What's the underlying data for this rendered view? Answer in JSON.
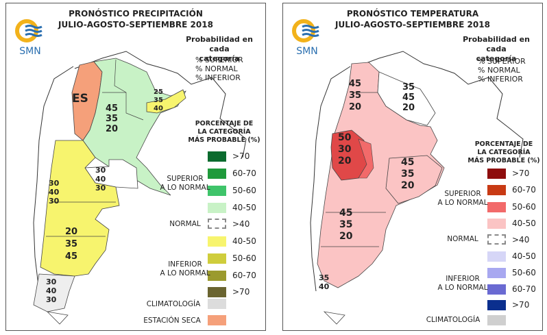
{
  "precipitation": {
    "title_line1": "PRONÓSTICO PRECIPITACIÓN",
    "title_line2": "JULIO-AGOSTO-SEPTIEMBRE 2018",
    "logo_text": "SMN",
    "prob_heading_line1": "Probabilidad en cada",
    "prob_heading_line2": "categoría",
    "prob_lines": [
      "% SUPERIOR",
      "% NORMAL",
      "% INFERIOR"
    ],
    "pct_title_line1": "PORCENTAJE DE",
    "pct_title_line2": "LA CATEGORÍA",
    "pct_title_line3": "MÁS PROBABLE (%)",
    "groups": {
      "superior": "SUPERIOR\nA LO NORMAL",
      "normal": "NORMAL",
      "inferior": "INFERIOR\nA LO NORMAL",
      "climatologia": "CLIMATOLOGÍA",
      "estacion_seca": "ESTACIÓN SECA"
    },
    "legend": [
      {
        "label": ">70",
        "color": "#0b6b2e"
      },
      {
        "label": "60-70",
        "color": "#1f9a3b"
      },
      {
        "label": "50-60",
        "color": "#3fc46a"
      },
      {
        "label": "40-50",
        "color": "#c8f2c6"
      },
      {
        "label": ">40",
        "color": "#ffffff"
      },
      {
        "label": "40-50",
        "color": "#f7f46e"
      },
      {
        "label": "50-60",
        "color": "#cfcd3c"
      },
      {
        "label": "60-70",
        "color": "#9b9a2e"
      },
      {
        "label": ">70",
        "color": "#6a6430"
      },
      {
        "label": "",
        "color": "#dcdcdc"
      },
      {
        "label": "",
        "color": "#f5a07a"
      }
    ],
    "map_labels": {
      "es": "ES",
      "center": [
        "45",
        "35",
        "20"
      ],
      "ne": [
        "25",
        "35",
        "40"
      ],
      "mid": [
        "30",
        "40",
        "30"
      ],
      "west": [
        "30",
        "40",
        "30"
      ],
      "patagonia": [
        "20",
        "35",
        "45"
      ],
      "south": [
        "30",
        "40",
        "30"
      ]
    }
  },
  "temperature": {
    "title_line1": "PRONÓSTICO TEMPERATURA",
    "title_line2": "JULIO-AGOSTO-SEPTIEMBRE 2018",
    "logo_text": "SMN",
    "prob_heading_line1": "Probabilidad en cada",
    "prob_heading_line2": "categoría",
    "prob_lines": [
      "% SUPERIOR",
      "% NORMAL",
      "% INFERIOR"
    ],
    "pct_title_line1": "PORCENTAJE DE",
    "pct_title_line2": "LA CATEGORÍA",
    "pct_title_line3": "MÁS PROBABLE (%)",
    "groups": {
      "superior": "SUPERIOR\nA LO NORMAL",
      "normal": "NORMAL",
      "inferior": "INFERIOR\nA LO NORMAL",
      "climatologia": "CLIMATOLOGÍA"
    },
    "legend": [
      {
        "label": ">70",
        "color": "#8e0d0d"
      },
      {
        "label": "60-70",
        "color": "#c83a14"
      },
      {
        "label": "50-60",
        "color": "#f26a6a"
      },
      {
        "label": "40-50",
        "color": "#fbc4c4"
      },
      {
        "label": ">40",
        "color": "#ffffff"
      },
      {
        "label": "40-50",
        "color": "#d6d6f7"
      },
      {
        "label": "50-60",
        "color": "#a8a8f0"
      },
      {
        "label": "60-70",
        "color": "#6a6ad2"
      },
      {
        "label": ">70",
        "color": "#0b2f8e"
      },
      {
        "label": "",
        "color": "#cfcfcf"
      }
    ],
    "map_labels": {
      "nw": [
        "45",
        "35",
        "20"
      ],
      "ne": [
        "35",
        "45",
        "20"
      ],
      "cuyo": [
        "50",
        "30",
        "20"
      ],
      "buenos_aires": [
        "45",
        "35",
        "20"
      ],
      "patagonia": [
        "45",
        "35",
        "20"
      ],
      "south": [
        "35",
        "40"
      ]
    }
  }
}
